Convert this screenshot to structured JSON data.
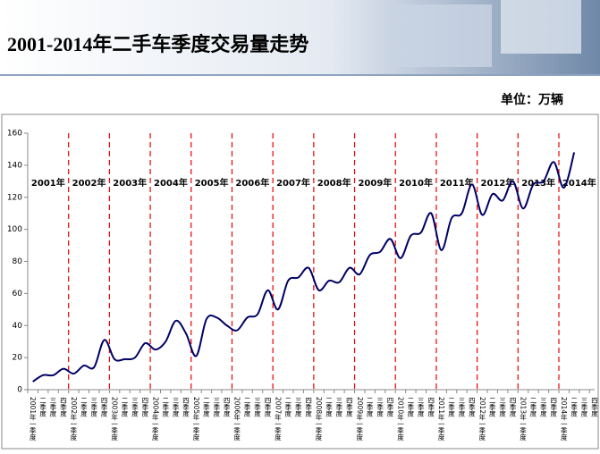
{
  "header": {
    "title": "2001-2014年二手车季度交易量走势",
    "unit": "单位：万辆"
  },
  "chart_data": {
    "type": "line",
    "categories": [
      "2001年一季度",
      "二季度",
      "三季度",
      "四季度",
      "2002年一季度",
      "二季度",
      "三季度",
      "四季度",
      "2003年一季度",
      "二季度",
      "三季度",
      "四季度",
      "2004年一季度",
      "二季度",
      "三季度",
      "四季度",
      "2005年一季度",
      "二季度",
      "三季度",
      "四季度",
      "2006年一季度",
      "二季度",
      "三季度",
      "四季度",
      "2007年一季度",
      "二季度",
      "三季度",
      "四季度",
      "2008年一季度",
      "二季度",
      "三季度",
      "四季度",
      "2009年一季度",
      "二季度",
      "三季度",
      "四季度",
      "2010年一季度",
      "二季度",
      "三季度",
      "四季度",
      "2011年一季度",
      "二季度",
      "三季度",
      "四季度",
      "2012年一季度",
      "二季度",
      "三季度",
      "四季度",
      "2013年一季度",
      "二季度",
      "三季度",
      "四季度",
      "2014年一季度",
      "二季度",
      "三季度",
      "四季度"
    ],
    "values": [
      5,
      9,
      9,
      13,
      10,
      15,
      14,
      31,
      19,
      19,
      20,
      29,
      25,
      30,
      43,
      35,
      21,
      44,
      45,
      40,
      37,
      45,
      47,
      62,
      50,
      68,
      70,
      76,
      62,
      68,
      67,
      76,
      72,
      84,
      86,
      94,
      82,
      96,
      98,
      110,
      87,
      107,
      110,
      128,
      109,
      122,
      118,
      130,
      113,
      128,
      130,
      142,
      126,
      148,
      null,
      null
    ],
    "color": "#000066",
    "year_labels": [
      "2001年",
      "2002年",
      "2003年",
      "2004年",
      "2005年",
      "2006年",
      "2007年",
      "2008年",
      "2009年",
      "2010年",
      "2011年",
      "2012年",
      "2013年",
      "2014年"
    ],
    "ylim": [
      0,
      160
    ],
    "yticks": [
      0,
      20,
      40,
      60,
      80,
      100,
      120,
      140,
      160
    ]
  }
}
